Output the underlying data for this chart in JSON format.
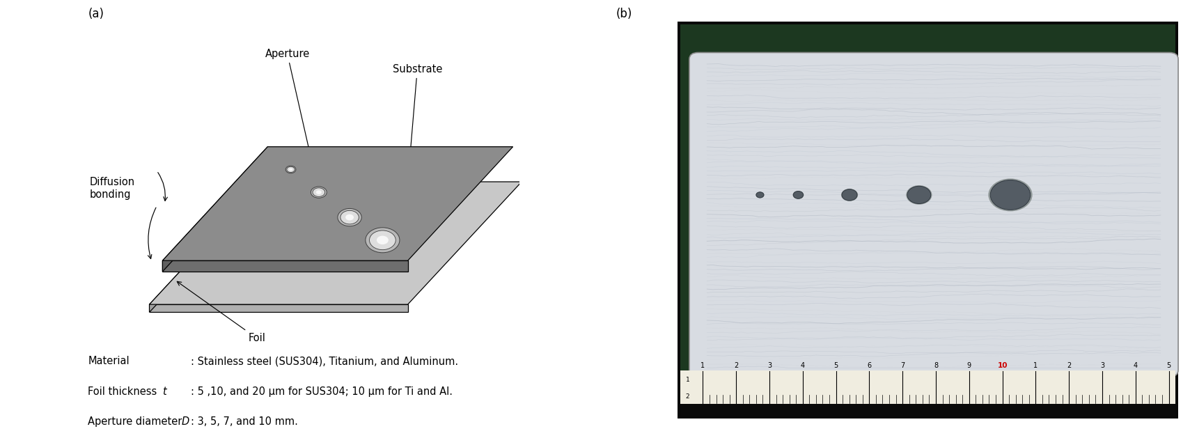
{
  "panel_a_label": "(a)",
  "panel_b_label": "(b)",
  "label_aperture": "Aperture",
  "label_substrate": "Substrate",
  "label_foil": "Foil",
  "label_diffusion": "Diffusion\nbonding",
  "text_material": "Material",
  "text_material_val": ": Stainless steel (SUS304), Titanium, and Aluminum.",
  "text_foil1": "Foil thickness ",
  "text_foil_t": "t",
  "text_foil_val": ": 5 ,10, and 20 μm for SUS304; 10 μm for Ti and Al.",
  "text_ap1": "Aperture diameter ",
  "text_ap_D": "D",
  "text_ap_val": ": 3, 5, 7, and 10 mm.",
  "bg_color": "#ffffff",
  "text_color": "#000000",
  "sub_top_color": "#8c8c8c",
  "sub_side_color": "#606060",
  "sub_front_color": "#6e6e6e",
  "foil_top_color": "#c8c8c8",
  "foil_side_color": "#a0a0a0",
  "foil_front_color": "#b0b0b0",
  "photo_bg_color": "#111111",
  "photo_green_color": "#1e3a1e",
  "photo_plate_color": "#d0d4d8",
  "ruler_color": "#e8e8e0",
  "ruler_text_color": "#000000",
  "ruler_red_color": "#cc0000"
}
